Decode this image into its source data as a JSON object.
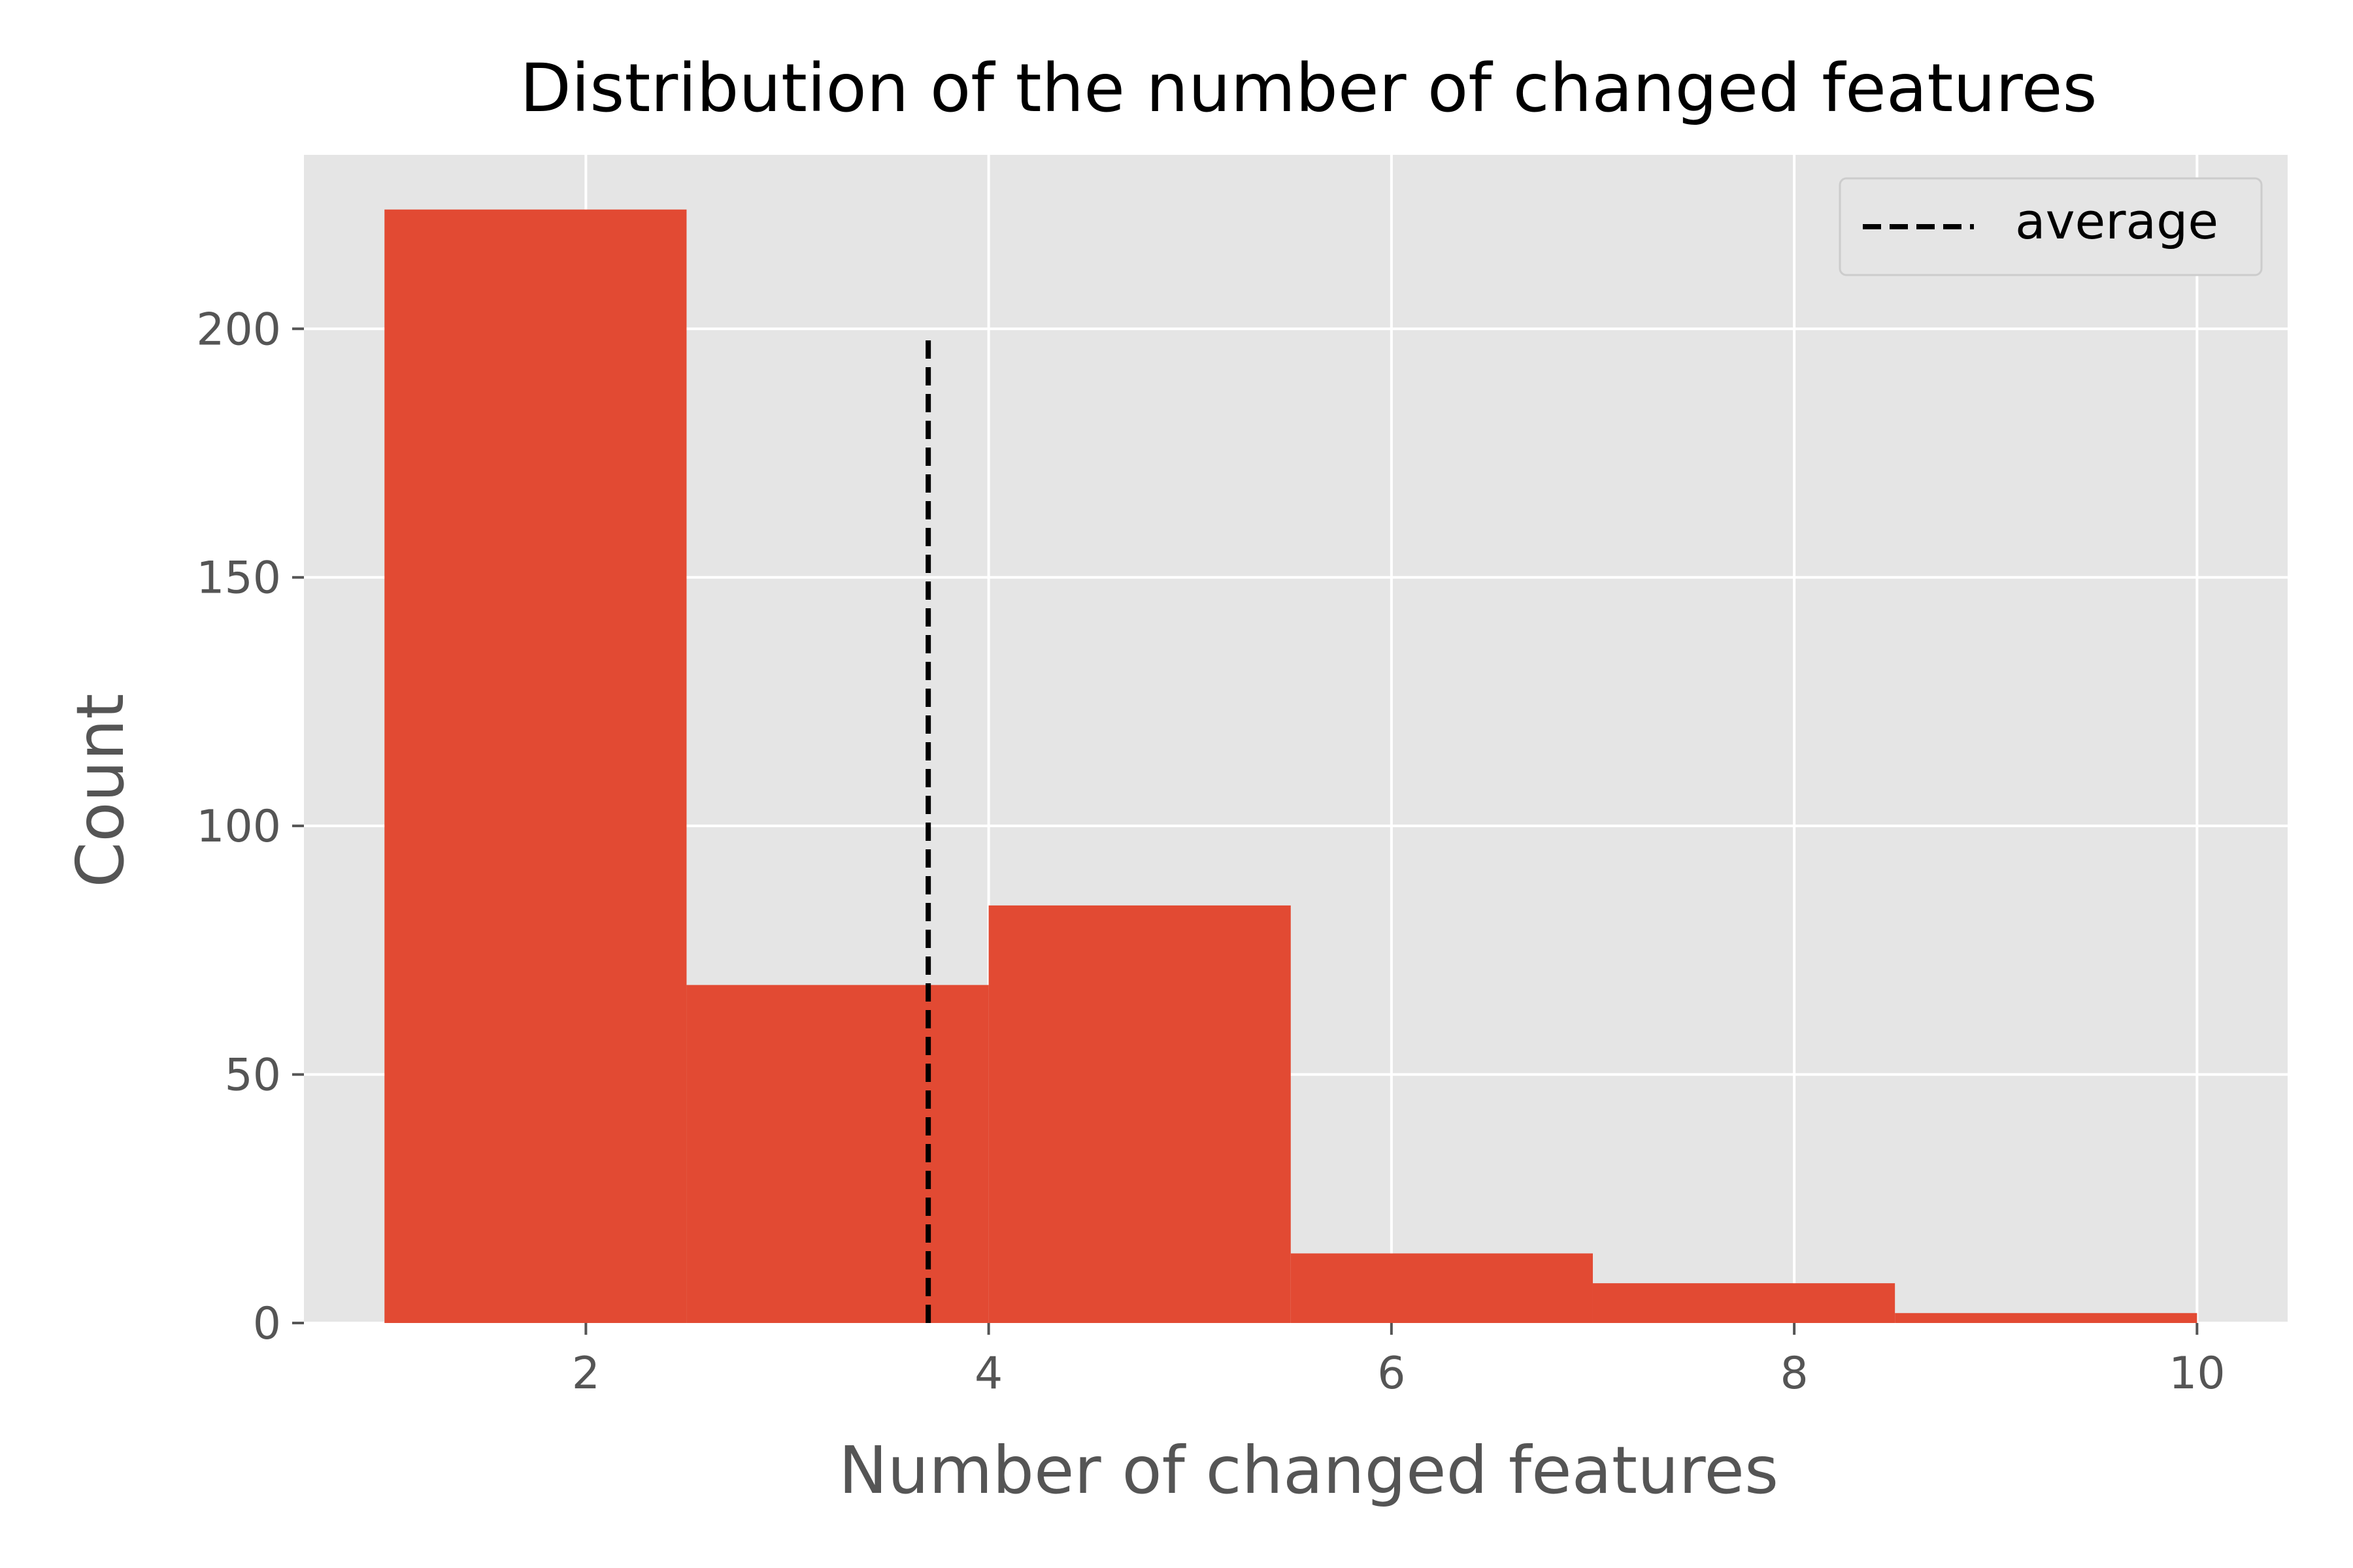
{
  "chart_data": {
    "type": "bar",
    "title": "Distribution of the number of changed features",
    "xlabel": "Number of changed features",
    "ylabel": "Count",
    "xlim": [
      0.6,
      10.45
    ],
    "ylim": [
      0,
      235
    ],
    "xticks": [
      2,
      4,
      6,
      8,
      10
    ],
    "yticks": [
      0,
      50,
      100,
      150,
      200
    ],
    "grid": true,
    "legend_position": "top-right",
    "bin_edges": [
      1.0,
      2.5,
      4.0,
      5.5,
      7.0,
      8.5,
      10.0
    ],
    "values": [
      224,
      68,
      84,
      14,
      8,
      2
    ],
    "reference_lines": [
      {
        "name": "average",
        "orientation": "vertical",
        "x": 3.7,
        "y_range": [
          0,
          198
        ],
        "style": "dashed",
        "color": "#000000"
      }
    ],
    "legend": [
      "average"
    ],
    "colors": {
      "bar": "#E24A33",
      "background": "#E5E5E5",
      "grid": "#FFFFFF"
    }
  }
}
